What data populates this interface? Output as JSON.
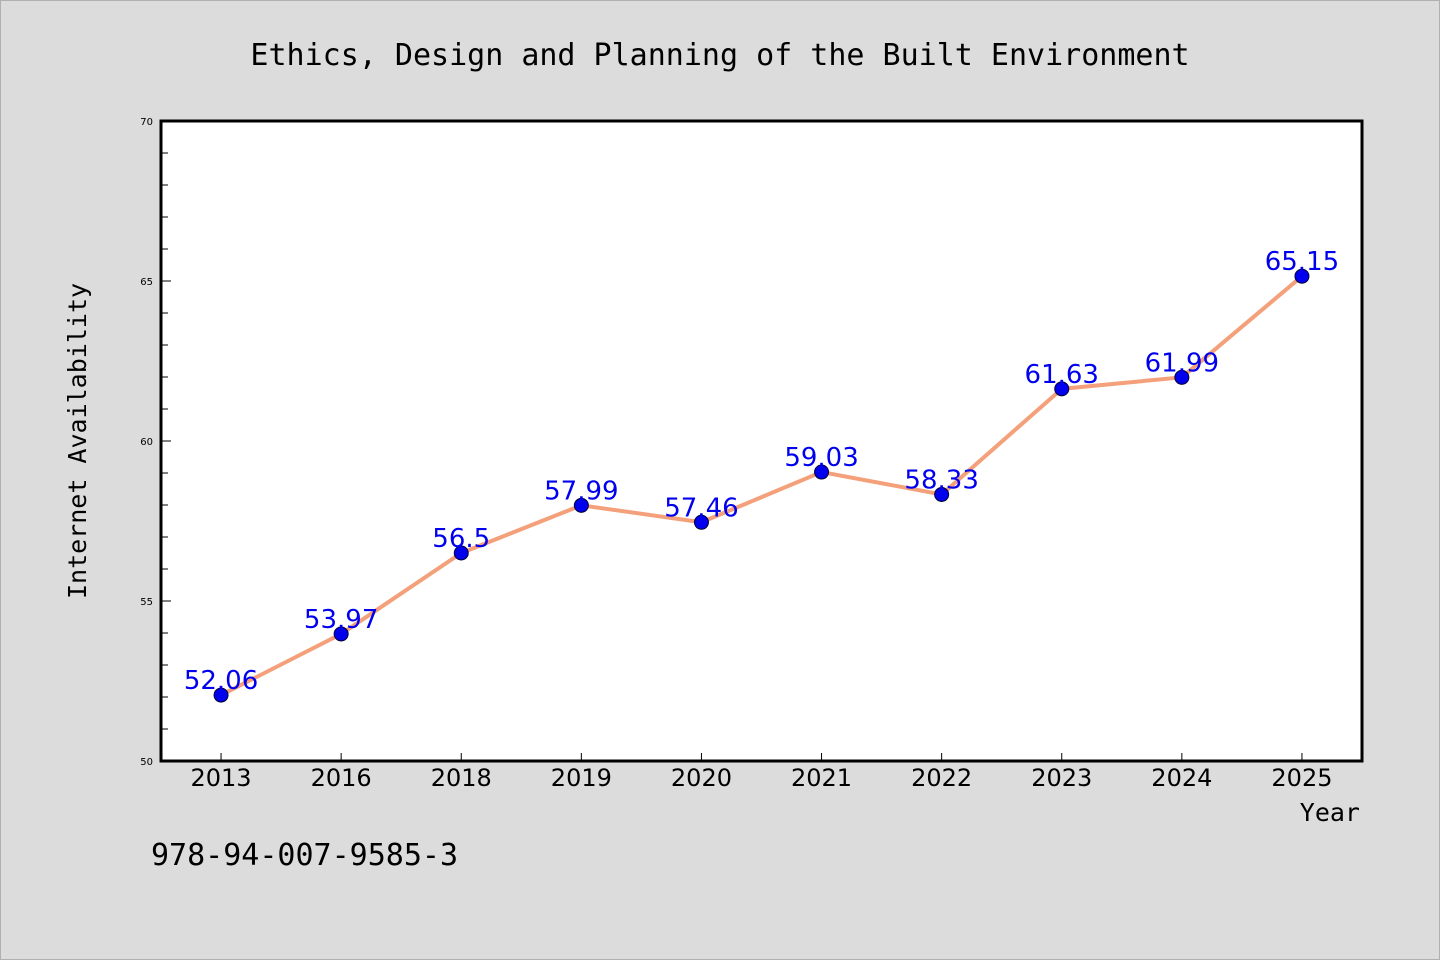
{
  "chart_data": {
    "type": "line",
    "title": "Ethics, Design and Planning of the Built Environment",
    "xlabel": "Year",
    "ylabel": "Internet Availability",
    "categories": [
      "2013",
      "2016",
      "2018",
      "2019",
      "2020",
      "2021",
      "2022",
      "2023",
      "2024",
      "2025"
    ],
    "series": [
      {
        "values": [
          52.06,
          53.97,
          56.5,
          57.99,
          57.46,
          59.03,
          58.33,
          61.63,
          61.99,
          65.15
        ],
        "labels": [
          "52.06",
          "53.97",
          "56.5",
          "57.99",
          "57.46",
          "59.03",
          "58.33",
          "61.63",
          "61.99",
          "65.15"
        ],
        "line_color": "#f4a07a",
        "marker_color": "#0000ee"
      }
    ],
    "ylim": [
      50,
      70
    ],
    "yticks": [
      "50",
      "55",
      "60",
      "65",
      "70"
    ],
    "grid": false,
    "legend": "none"
  },
  "annotation": "978-94-007-9585-3",
  "colors": {
    "background": "#dcdcdc",
    "plot_background": "#ffffff",
    "line": "#f4a07a",
    "markers": "#0000ee",
    "data_labels": "#0000ee"
  }
}
